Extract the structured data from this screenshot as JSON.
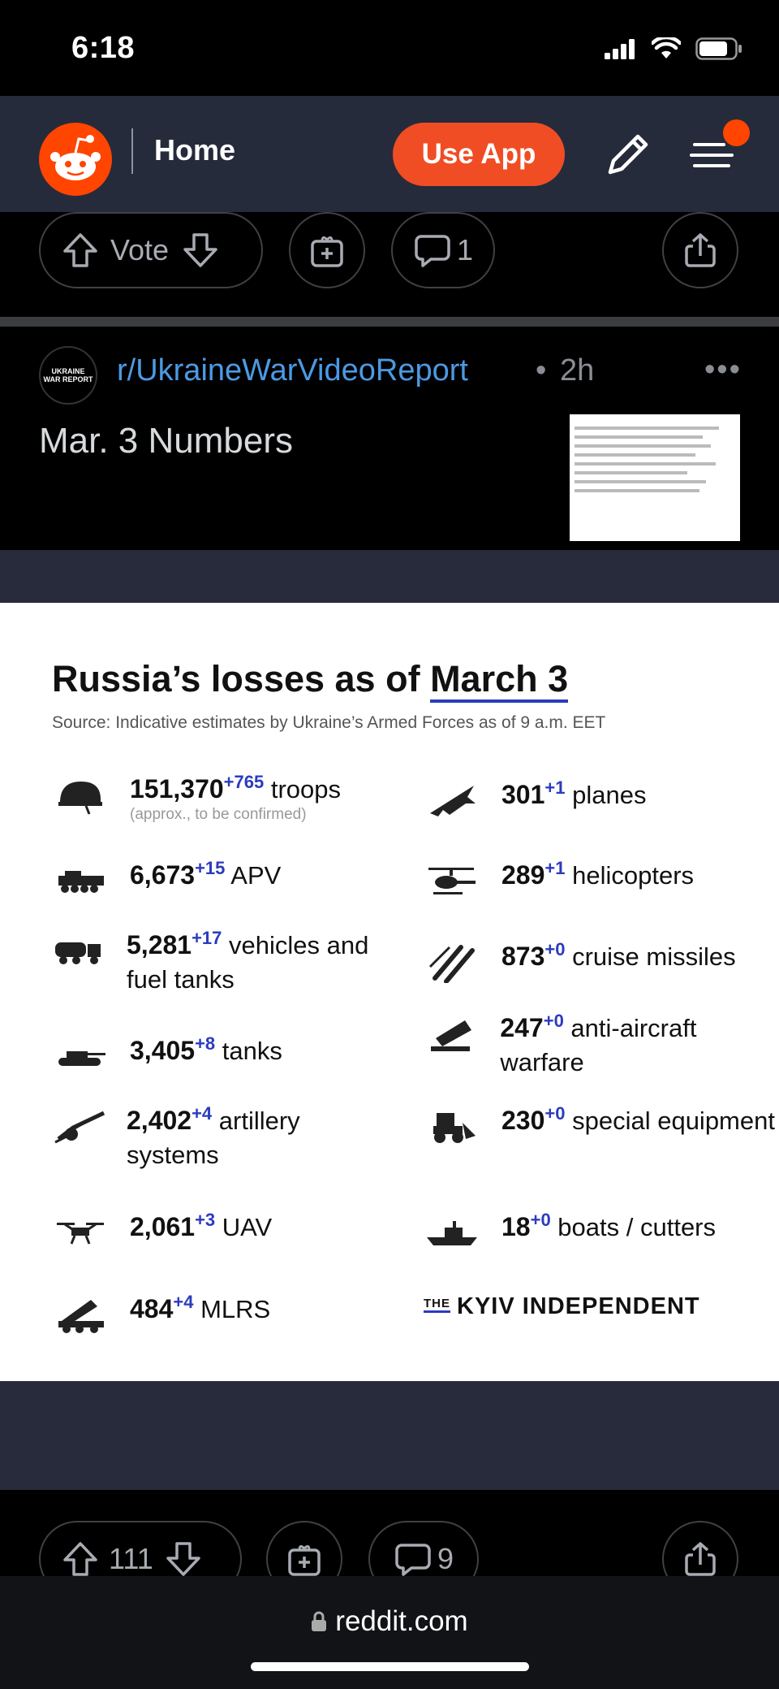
{
  "status": {
    "time": "6:18"
  },
  "header": {
    "home": "Home",
    "use_app": "Use App"
  },
  "top_actions": {
    "vote": "Vote",
    "comments": "1"
  },
  "post": {
    "subreddit": "r/UkraineWarVideoReport",
    "separator": "•",
    "age": "2h",
    "more": "•••",
    "title": "Mar. 3 Numbers",
    "avatar_text": [
      "UKRAINE",
      "WAR REPORT"
    ]
  },
  "infographic": {
    "title_pre": "Russia’s losses  as of ",
    "title_date": "March 3",
    "source": "Source: Indicative estimates by Ukraine’s Armed Forces as of 9 a.m. EET",
    "left": [
      {
        "icon": "helmet-icon",
        "num": "151,370",
        "delta": "+765",
        "label": " troops",
        "sub": "(approx., to be confirmed)"
      },
      {
        "icon": "apv-icon",
        "num": "6,673",
        "delta": "+15",
        "label": " APV"
      },
      {
        "icon": "truck-icon",
        "num": "5,281",
        "delta": "+17",
        "label": " vehicles and fuel tanks"
      },
      {
        "icon": "tank-icon",
        "num": "3,405",
        "delta": "+8",
        "label": " tanks"
      },
      {
        "icon": "artillery-icon",
        "num": "2,402",
        "delta": "+4",
        "label": " artillery systems"
      },
      {
        "icon": "drone-icon",
        "num": "2,061",
        "delta": "+3",
        "label": " UAV"
      },
      {
        "icon": "mlrs-icon",
        "num": "484",
        "delta": "+4",
        "label": " MLRS"
      }
    ],
    "right": [
      {
        "icon": "plane-icon",
        "num": "301",
        "delta": "+1",
        "label": " planes"
      },
      {
        "icon": "helicopter-icon",
        "num": "289",
        "delta": "+1",
        "label": " helicopters"
      },
      {
        "icon": "missile-icon",
        "num": "873",
        "delta": "+0",
        "label": " cruise missiles"
      },
      {
        "icon": "anti-aircraft-icon",
        "num": "247",
        "delta": "+0",
        "label": " anti-aircraft warfare"
      },
      {
        "icon": "bulldozer-icon",
        "num": "230",
        "delta": "+0",
        "label": " special equipment"
      },
      {
        "icon": "boat-icon",
        "num": "18",
        "delta": "+0",
        "label": " boats / cutters"
      }
    ],
    "brand_the": "THE",
    "brand": "KYIV INDEPENDENT"
  },
  "bottom_actions": {
    "votes": "111",
    "comments": "9"
  },
  "browser": {
    "url": "reddit.com"
  },
  "colors": {
    "accent": "#ff4500",
    "link": "#4b9ae4",
    "delta": "#2b3bbd"
  }
}
